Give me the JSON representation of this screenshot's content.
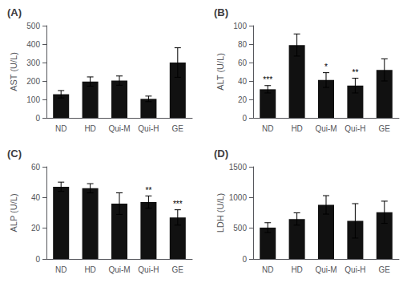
{
  "chart_data": [
    {
      "type": "bar",
      "title": "(A)",
      "ylabel": "AST (U/L)",
      "categories": [
        "ND",
        "HD",
        "Qui-M",
        "Qui-H",
        "GE"
      ],
      "values": [
        128,
        197,
        202,
        103,
        300
      ],
      "errors": [
        20,
        25,
        25,
        15,
        80
      ],
      "color": "#111111",
      "ylim": [
        0,
        500
      ],
      "yticks": [
        0,
        100,
        200,
        300,
        400,
        500
      ],
      "grid": false
    },
    {
      "type": "bar",
      "title": "(B)",
      "ylabel": "ALT (U/L)",
      "categories": [
        "ND",
        "HD",
        "Qui-M",
        "Qui-H",
        "GE"
      ],
      "values": [
        31,
        79,
        41,
        35,
        52
      ],
      "errors": [
        4,
        12,
        8,
        8,
        12
      ],
      "annotations": [
        {
          "x": "ND",
          "text": "***"
        },
        {
          "x": "Qui-M",
          "text": "*"
        },
        {
          "x": "Qui-H",
          "text": "**"
        }
      ],
      "color": "#111111",
      "ylim": [
        0,
        100
      ],
      "yticks": [
        0,
        20,
        40,
        60,
        80,
        100
      ],
      "grid": false
    },
    {
      "type": "bar",
      "title": "(C)",
      "ylabel": "ALP (U/L)",
      "categories": [
        "ND",
        "HD",
        "Qui-M",
        "Qui-H",
        "GE"
      ],
      "values": [
        47,
        46,
        36,
        37,
        27
      ],
      "errors": [
        3,
        3,
        7,
        4,
        5
      ],
      "annotations": [
        {
          "x": "Qui-H",
          "text": "**"
        },
        {
          "x": "GE",
          "text": "***"
        }
      ],
      "color": "#111111",
      "ylim": [
        0,
        60
      ],
      "yticks": [
        0,
        20,
        40,
        60
      ],
      "grid": false
    },
    {
      "type": "bar",
      "title": "(D)",
      "ylabel": "LDH (U/L)",
      "categories": [
        "ND",
        "HD",
        "Qui-M",
        "Qui-H",
        "GE"
      ],
      "values": [
        510,
        650,
        880,
        620,
        760
      ],
      "errors": [
        80,
        100,
        150,
        280,
        180
      ],
      "color": "#111111",
      "ylim": [
        0,
        1500
      ],
      "yticks": [
        0,
        500,
        1000,
        1500
      ],
      "grid": false
    }
  ]
}
